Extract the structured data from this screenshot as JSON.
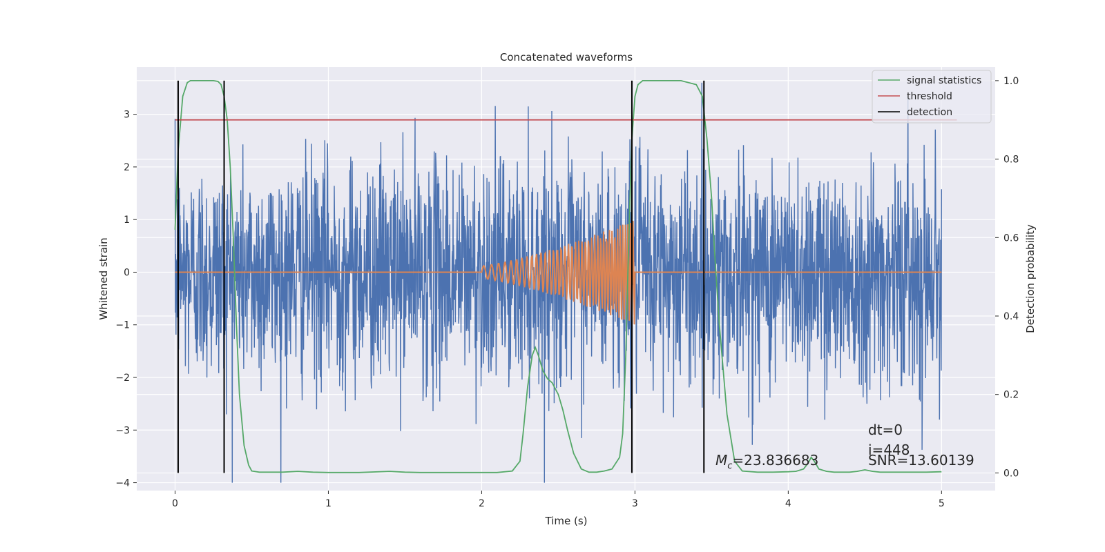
{
  "chart_data": {
    "type": "line",
    "title": "Concatenated waveforms",
    "xlabel": "Time (s)",
    "ylabel": "Whitened strain",
    "y2label": "Detection probability",
    "xlim": [
      -0.25,
      5.35
    ],
    "ylim": [
      -4.15,
      3.9
    ],
    "y2lim": [
      -0.045,
      1.035
    ],
    "xticks": [
      "0",
      "1",
      "2",
      "3",
      "4",
      "5"
    ],
    "xtick_values": [
      0,
      1,
      2,
      3,
      4,
      5
    ],
    "yticks": [
      "−4",
      "−3",
      "−2",
      "−1",
      "0",
      "1",
      "2",
      "3"
    ],
    "ytick_values": [
      -4,
      -3,
      -2,
      -1,
      0,
      1,
      2,
      3
    ],
    "y2ticks": [
      "0.0",
      "0.2",
      "0.4",
      "0.6",
      "0.8",
      "1.0"
    ],
    "y2tick_values": [
      0.0,
      0.2,
      0.4,
      0.6,
      0.8,
      1.0
    ],
    "grid": true,
    "legend_position": "top-right",
    "legend": [
      "signal statistics",
      "threshold",
      "detection"
    ],
    "series": [
      {
        "name": "",
        "role": "whitened strain noise",
        "color": "#4c72b0",
        "x_range": [
          0,
          5
        ],
        "approx_range": [
          -4.0,
          3.6
        ]
      },
      {
        "name": "",
        "role": "injected chirp waveform",
        "color": "#dd8452",
        "x_range": [
          0,
          5
        ],
        "chirp_window": [
          2.0,
          3.0
        ],
        "chirp_amplitude_end": 1.0
      },
      {
        "name": "signal statistics",
        "axis": "right",
        "color": "#55a868",
        "x": [
          0,
          0.02,
          0.05,
          0.08,
          0.1,
          0.15,
          0.2,
          0.25,
          0.28,
          0.3,
          0.32,
          0.34,
          0.36,
          0.38,
          0.4,
          0.42,
          0.45,
          0.48,
          0.5,
          0.55,
          0.6,
          0.7,
          0.8,
          0.9,
          1.0,
          1.2,
          1.4,
          1.5,
          1.6,
          1.8,
          2.0,
          2.1,
          2.2,
          2.25,
          2.27,
          2.3,
          2.33,
          2.35,
          2.37,
          2.4,
          2.43,
          2.46,
          2.5,
          2.53,
          2.56,
          2.6,
          2.65,
          2.7,
          2.75,
          2.8,
          2.85,
          2.9,
          2.92,
          2.94,
          2.96,
          2.98,
          3.0,
          3.02,
          3.05,
          3.1,
          3.2,
          3.3,
          3.4,
          3.44,
          3.47,
          3.5,
          3.52,
          3.55,
          3.6,
          3.65,
          3.7,
          3.8,
          3.9,
          4.0,
          4.05,
          4.1,
          4.13,
          4.15,
          4.17,
          4.2,
          4.25,
          4.3,
          4.4,
          4.45,
          4.5,
          4.55,
          4.6,
          4.7,
          4.8,
          4.9,
          5.0
        ],
        "values": [
          0.62,
          0.82,
          0.96,
          0.995,
          1.0,
          1.0,
          1.0,
          1.0,
          0.998,
          0.99,
          0.96,
          0.9,
          0.78,
          0.6,
          0.38,
          0.2,
          0.07,
          0.02,
          0.005,
          0.002,
          0.002,
          0.002,
          0.004,
          0.002,
          0.001,
          0.001,
          0.004,
          0.002,
          0.001,
          0.001,
          0.001,
          0.001,
          0.005,
          0.03,
          0.1,
          0.22,
          0.3,
          0.32,
          0.3,
          0.26,
          0.24,
          0.23,
          0.2,
          0.16,
          0.11,
          0.05,
          0.01,
          0.002,
          0.002,
          0.005,
          0.01,
          0.04,
          0.1,
          0.3,
          0.6,
          0.85,
          0.96,
          0.99,
          1.0,
          1.0,
          1.0,
          1.0,
          0.99,
          0.96,
          0.85,
          0.7,
          0.56,
          0.38,
          0.15,
          0.03,
          0.005,
          0.002,
          0.002,
          0.003,
          0.004,
          0.01,
          0.025,
          0.04,
          0.03,
          0.01,
          0.004,
          0.002,
          0.002,
          0.004,
          0.008,
          0.004,
          0.002,
          0.002,
          0.002,
          0.002,
          0.003
        ]
      },
      {
        "name": "threshold",
        "axis": "right",
        "color": "#c44e52",
        "x": [
          0,
          5.1
        ],
        "values": [
          0.9,
          0.9
        ]
      },
      {
        "name": "detection",
        "axis": "right",
        "color": "#000000",
        "vlines_x": [
          0.02,
          0.32,
          2.98,
          3.45
        ],
        "vlines_range": [
          0.0,
          1.0
        ]
      }
    ],
    "annotations": [
      {
        "text_prefix": "M",
        "text_sub": "c",
        "text_rest": "=23.836683"
      },
      {
        "text": "dt=0"
      },
      {
        "text": "i=448"
      },
      {
        "text": "SNR=13.60139"
      }
    ]
  }
}
